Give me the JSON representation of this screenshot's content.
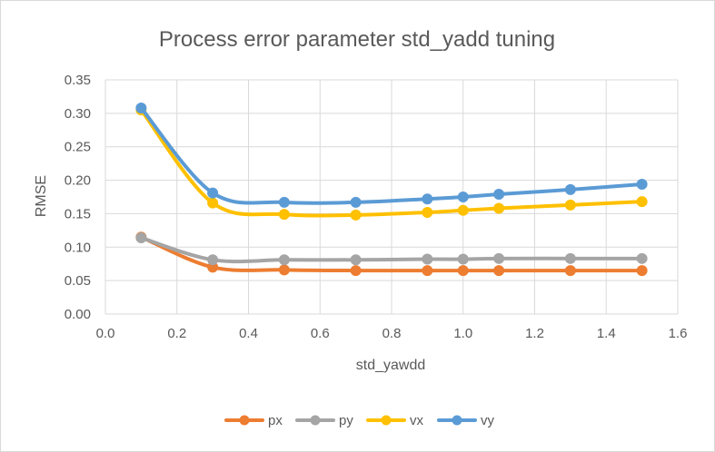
{
  "chart_data": {
    "type": "line",
    "title": "Process error parameter std_yadd tuning",
    "xlabel": "std_yawdd",
    "ylabel": "RMSE",
    "xlim": [
      0.0,
      1.6
    ],
    "ylim": [
      0.0,
      0.35
    ],
    "x_ticks": [
      "0.0",
      "0.2",
      "0.4",
      "0.6",
      "0.8",
      "1.0",
      "1.2",
      "1.4",
      "1.6"
    ],
    "y_ticks": [
      "0.00",
      "0.05",
      "0.10",
      "0.15",
      "0.20",
      "0.25",
      "0.30",
      "0.35"
    ],
    "x": [
      0.1,
      0.3,
      0.5,
      0.7,
      0.9,
      1.0,
      1.1,
      1.3,
      1.5
    ],
    "grid": true,
    "legend_position": "bottom",
    "smooth": true,
    "series": [
      {
        "name": "px",
        "color": "#ed7d31",
        "values": [
          0.115,
          0.07,
          0.066,
          0.065,
          0.065,
          0.065,
          0.065,
          0.065,
          0.065
        ]
      },
      {
        "name": "py",
        "color": "#a5a5a5",
        "values": [
          0.114,
          0.081,
          0.081,
          0.081,
          0.082,
          0.082,
          0.083,
          0.083,
          0.083
        ]
      },
      {
        "name": "vx",
        "color": "#ffc000",
        "values": [
          0.305,
          0.166,
          0.149,
          0.148,
          0.152,
          0.155,
          0.158,
          0.163,
          0.168
        ]
      },
      {
        "name": "vy",
        "color": "#5b9bd5",
        "values": [
          0.308,
          0.181,
          0.167,
          0.167,
          0.172,
          0.175,
          0.179,
          0.186,
          0.194
        ]
      }
    ]
  }
}
